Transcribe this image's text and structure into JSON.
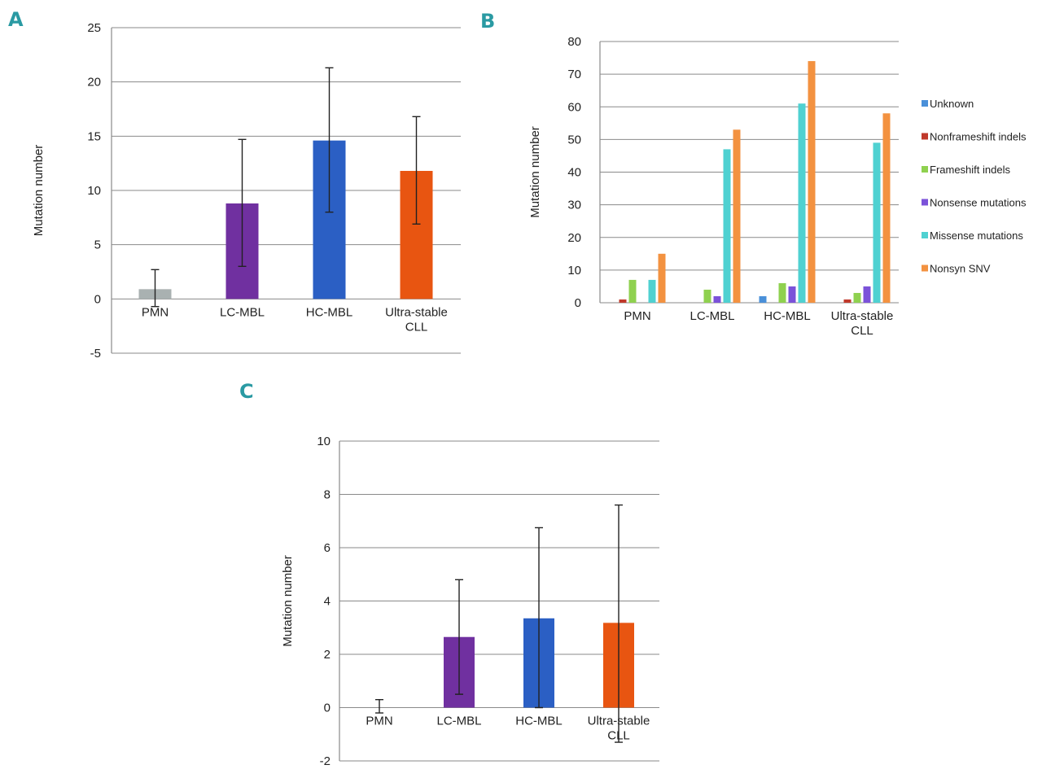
{
  "chart_data": [
    {
      "panel": "A",
      "type": "bar",
      "ylabel": "Mutation number",
      "ylim": [
        -5,
        25
      ],
      "yticks": [
        -5,
        0,
        5,
        10,
        15,
        20,
        25
      ],
      "categories": [
        "PMN",
        "LC-MBL",
        "HC-MBL",
        "Ultra-stable CLL"
      ],
      "values": [
        0.9,
        8.8,
        14.6,
        11.8
      ],
      "err_low": [
        -0.7,
        3.0,
        8.0,
        6.9
      ],
      "err_high": [
        2.7,
        14.7,
        21.3,
        16.8
      ],
      "colors": [
        "#a9b1b1",
        "#7030a0",
        "#2b5fc4",
        "#e85511"
      ]
    },
    {
      "panel": "B",
      "type": "bar",
      "ylabel": "Mutation number",
      "ylim": [
        0,
        80
      ],
      "yticks": [
        0,
        10,
        20,
        30,
        40,
        50,
        60,
        70,
        80
      ],
      "categories": [
        "PMN",
        "LC-MBL",
        "HC-MBL",
        "Ultra-stable CLL"
      ],
      "series": [
        {
          "name": "Unknown",
          "color": "#4a90d9",
          "values": [
            0,
            0,
            2,
            0
          ]
        },
        {
          "name": "Nonframeshift indels",
          "color": "#c0392b",
          "values": [
            1,
            0,
            0,
            1
          ]
        },
        {
          "name": "Frameshift indels",
          "color": "#8fd14f",
          "values": [
            7,
            4,
            6,
            3
          ]
        },
        {
          "name": "Nonsense mutations",
          "color": "#7b52d9",
          "values": [
            0,
            2,
            5,
            5
          ]
        },
        {
          "name": "Missense mutations",
          "color": "#4fd1d1",
          "values": [
            7,
            47,
            61,
            49
          ]
        },
        {
          "name": "Nonsyn SNV",
          "color": "#f39240",
          "values": [
            15,
            53,
            74,
            58
          ]
        }
      ]
    },
    {
      "panel": "C",
      "type": "bar",
      "ylabel": "Mutation number",
      "ylim": [
        -2,
        10
      ],
      "yticks": [
        -2,
        0,
        2,
        4,
        6,
        8,
        10
      ],
      "categories": [
        "PMN",
        "LC-MBL",
        "HC-MBL",
        "Ultra-stable CLL"
      ],
      "values": [
        0,
        2.65,
        3.35,
        3.18
      ],
      "err_low": [
        -0.2,
        0.5,
        0.0,
        -1.3
      ],
      "err_high": [
        0.3,
        4.8,
        6.75,
        7.6
      ],
      "colors": [
        "#a9b1b1",
        "#7030a0",
        "#2b5fc4",
        "#e85511"
      ]
    }
  ]
}
